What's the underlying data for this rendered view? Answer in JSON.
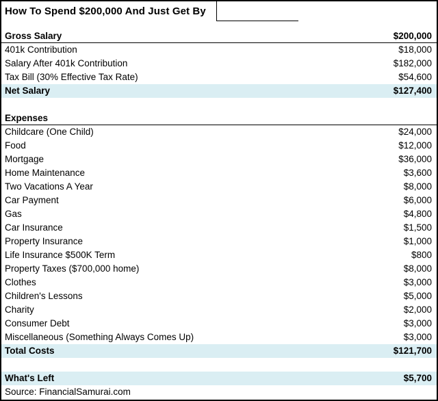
{
  "title": "How To Spend $200,000 And Just Get By",
  "source": "Source: FinancialSamurai.com",
  "colors": {
    "highlight": "#DAEEF3",
    "border": "#000000",
    "text": "#000000",
    "background": "#FFFFFF"
  },
  "table": {
    "rows": [
      {
        "type": "spacer-sm",
        "label": "",
        "value": ""
      },
      {
        "type": "section",
        "label": "Gross Salary",
        "value": "$200,000"
      },
      {
        "type": "item",
        "label": "401k Contribution",
        "value": "$18,000"
      },
      {
        "type": "item",
        "label": "Salary After 401k Contribution",
        "value": "$182,000"
      },
      {
        "type": "item",
        "label": "Tax Bill (30% Effective Tax Rate)",
        "value": "$54,600"
      },
      {
        "type": "total",
        "label": "Net Salary",
        "value": "$127,400"
      },
      {
        "type": "spacer",
        "label": "",
        "value": ""
      },
      {
        "type": "section",
        "label": "Expenses",
        "value": ""
      },
      {
        "type": "item",
        "label": "Childcare (One Child)",
        "value": "$24,000"
      },
      {
        "type": "item",
        "label": "Food",
        "value": "$12,000"
      },
      {
        "type": "item",
        "label": "Mortgage",
        "value": "$36,000"
      },
      {
        "type": "item",
        "label": "Home Maintenance",
        "value": "$3,600"
      },
      {
        "type": "item",
        "label": "Two Vacations A Year",
        "value": "$8,000"
      },
      {
        "type": "item",
        "label": "Car Payment",
        "value": "$6,000"
      },
      {
        "type": "item",
        "label": "Gas",
        "value": "$4,800"
      },
      {
        "type": "item",
        "label": "Car Insurance",
        "value": "$1,500"
      },
      {
        "type": "item",
        "label": "Property Insurance",
        "value": "$1,000"
      },
      {
        "type": "item",
        "label": "Life Insurance $500K Term",
        "value": "$800"
      },
      {
        "type": "item",
        "label": "Property Taxes ($700,000 home)",
        "value": "$8,000"
      },
      {
        "type": "item",
        "label": "Clothes",
        "value": "$3,000"
      },
      {
        "type": "item",
        "label": "Children's Lessons",
        "value": "$5,000"
      },
      {
        "type": "item",
        "label": "Charity",
        "value": "$2,000"
      },
      {
        "type": "item",
        "label": "Consumer Debt",
        "value": "$3,000"
      },
      {
        "type": "item",
        "label": "Miscellaneous (Something Always Comes Up)",
        "value": "$3,000"
      },
      {
        "type": "total",
        "label": "Total Costs",
        "value": "$121,700"
      },
      {
        "type": "spacer",
        "label": "",
        "value": ""
      },
      {
        "type": "total",
        "label": "What's Left",
        "value": "$5,700"
      },
      {
        "type": "source",
        "label": "Source: FinancialSamurai.com",
        "value": ""
      }
    ]
  },
  "chart_data": {
    "type": "table",
    "title": "How To Spend $200,000 And Just Get By",
    "columns": [
      "Item",
      "Amount"
    ],
    "rows": [
      [
        "Gross Salary",
        200000
      ],
      [
        "401k Contribution",
        18000
      ],
      [
        "Salary After 401k Contribution",
        182000
      ],
      [
        "Tax Bill (30% Effective Tax Rate)",
        54600
      ],
      [
        "Net Salary",
        127400
      ],
      [
        "Childcare (One Child)",
        24000
      ],
      [
        "Food",
        12000
      ],
      [
        "Mortgage",
        36000
      ],
      [
        "Home Maintenance",
        3600
      ],
      [
        "Two Vacations A Year",
        8000
      ],
      [
        "Car Payment",
        6000
      ],
      [
        "Gas",
        4800
      ],
      [
        "Car Insurance",
        1500
      ],
      [
        "Property Insurance",
        1000
      ],
      [
        "Life Insurance $500K Term",
        800
      ],
      [
        "Property Taxes ($700,000 home)",
        8000
      ],
      [
        "Clothes",
        3000
      ],
      [
        "Children's Lessons",
        5000
      ],
      [
        "Charity",
        2000
      ],
      [
        "Consumer Debt",
        3000
      ],
      [
        "Miscellaneous (Something Always Comes Up)",
        3000
      ],
      [
        "Total Costs",
        121700
      ],
      [
        "What's Left",
        5700
      ]
    ],
    "highlighted_rows": [
      "Net Salary",
      "Total Costs",
      "What's Left"
    ],
    "source": "Source: FinancialSamurai.com"
  }
}
